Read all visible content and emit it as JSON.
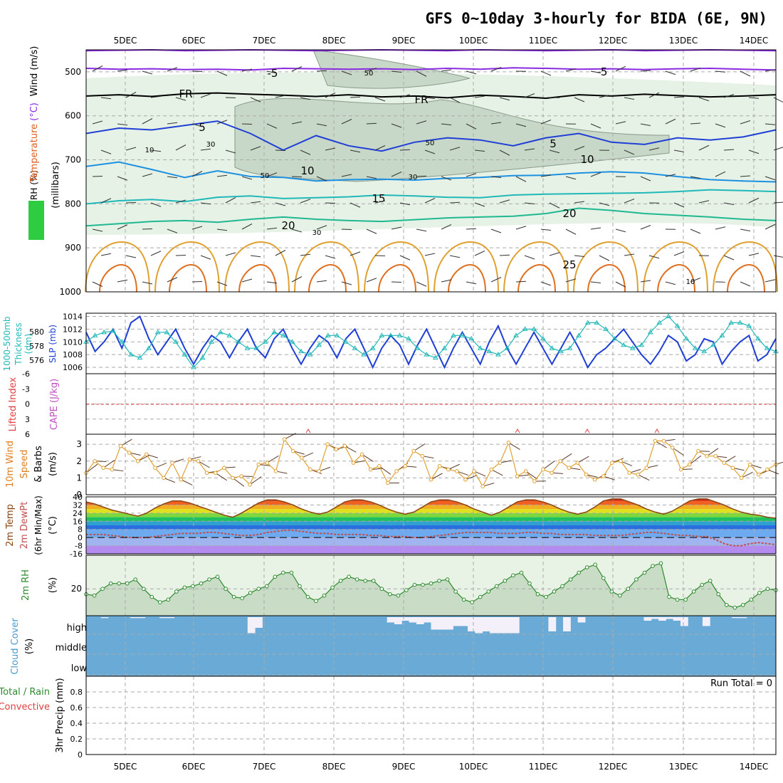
{
  "title": "GFS 0~10day 3-hourly for BIDA (6E, 9N)",
  "run_total": "Run Total = 0",
  "dates": [
    "5DEC",
    "6DEC",
    "7DEC",
    "8DEC",
    "9DEC",
    "10DEC",
    "11DEC",
    "12DEC",
    "13DEC",
    "14DEC"
  ],
  "colors": {
    "purple": "#8a2be2",
    "black": "#000000",
    "blue": "#1f3fd6",
    "lightblue": "#1e90e0",
    "teal": "#20b8b8",
    "green": "#20b890",
    "orange": "#e0a030",
    "darkorange": "#e07020",
    "rh_green": "#2e8b2e",
    "cloud": "#6aaad6",
    "cape": "#c050c0",
    "li": "#e04040"
  },
  "chart_data": [
    {
      "type": "line",
      "panel": "upper-air",
      "ylabel_parts": [
        "RH (%)",
        "Temperature",
        "(°C)",
        "Wind (m/s)"
      ],
      "ylabel2": "(millibars)",
      "y_ticks": [
        500,
        600,
        700,
        800,
        900,
        1000
      ],
      "ylim": [
        1000,
        450
      ],
      "contour_labels": [
        "-5",
        "-5",
        "5",
        "5",
        "10",
        "10",
        "15",
        "20",
        "20",
        "25",
        "FR",
        "FR",
        "10",
        "30",
        "50",
        "50",
        "50",
        "30",
        "30",
        "10"
      ],
      "isotherms": [
        {
          "name": "-5",
          "color": "purple",
          "level": [
            492,
            494,
            493,
            495,
            494,
            496,
            492,
            493,
            494,
            493,
            495,
            492,
            494,
            491,
            492,
            494,
            493,
            495,
            493,
            492,
            494,
            496
          ]
        },
        {
          "name": "-5b",
          "color": "purple",
          "level": [
            452,
            451,
            450,
            452,
            451,
            450,
            451,
            452,
            451,
            450,
            451,
            452,
            450,
            451,
            452,
            451,
            450,
            452,
            451,
            450,
            451,
            452
          ]
        },
        {
          "name": "FR",
          "color": "black",
          "level": [
            555,
            552,
            556,
            550,
            548,
            551,
            553,
            556,
            552,
            557,
            555,
            559,
            553,
            556,
            560,
            552,
            555,
            551,
            554,
            557,
            555,
            552
          ]
        },
        {
          "name": "5",
          "color": "blue",
          "level": [
            640,
            628,
            632,
            622,
            612,
            640,
            678,
            645,
            668,
            680,
            660,
            650,
            655,
            668,
            650,
            640,
            660,
            665,
            650,
            655,
            648,
            632
          ]
        },
        {
          "name": "10",
          "color": "lightblue",
          "level": [
            715,
            705,
            722,
            740,
            725,
            738,
            740,
            748,
            745,
            744,
            746,
            742,
            740,
            736,
            735,
            730,
            727,
            730,
            738,
            745,
            748,
            750
          ]
        },
        {
          "name": "15",
          "color": "teal",
          "level": [
            800,
            793,
            790,
            795,
            785,
            782,
            788,
            786,
            784,
            780,
            782,
            785,
            786,
            780,
            778,
            777,
            776,
            775,
            772,
            768,
            770,
            772
          ]
        },
        {
          "name": "20",
          "color": "green",
          "level": [
            850,
            845,
            840,
            838,
            842,
            835,
            830,
            835,
            838,
            840,
            836,
            832,
            830,
            828,
            822,
            810,
            815,
            822,
            826,
            830,
            835,
            838
          ]
        }
      ]
    },
    {
      "type": "line",
      "panel": "thickness-slp",
      "ylabel_left": [
        "1000-500mb",
        "Thickness",
        "(dm)"
      ],
      "ylabel_right": [
        "SLP",
        "(mb)"
      ],
      "y_ticks_left": [
        576,
        578,
        580
      ],
      "y_ticks_right": [
        1006,
        1008,
        1010,
        1012,
        1014
      ],
      "ylim_right": [
        1005,
        1014.5
      ],
      "series": [
        {
          "name": "SLP (mb)",
          "color": "blue",
          "values": [
            1011.5,
            1008.5,
            1010,
            1012,
            1009,
            1013,
            1014,
            1010.5,
            1008,
            1010,
            1012,
            1009,
            1006.5,
            1009,
            1011,
            1010,
            1007.5,
            1010,
            1012,
            1009,
            1007.5,
            1010.5,
            1012,
            1009,
            1006.5,
            1009,
            1011,
            1010,
            1007.5,
            1010.5,
            1012,
            1009,
            1006,
            1009,
            1011,
            1009.5,
            1006.5,
            1009.5,
            1012,
            1009,
            1006,
            1009,
            1011.5,
            1009,
            1006.5,
            1010,
            1012.5,
            1009,
            1006.5,
            1009,
            1011.5,
            1009,
            1006.5,
            1009,
            1011.5,
            1009,
            1006,
            1008,
            1009,
            1010.5,
            1012,
            1010,
            1008,
            1006.5,
            1008.5,
            1011,
            1010,
            1007,
            1008,
            1010.5,
            1010,
            1006.5,
            1008.5,
            1010,
            1011,
            1007,
            1008,
            1010.5
          ]
        },
        {
          "name": "Thickness (dm)",
          "color": "teal",
          "values": [
            1010,
            1011,
            1011.5,
            1011.7,
            1010,
            1008,
            1007.5,
            1009,
            1011.5,
            1011.5,
            1010,
            1008,
            1006,
            1007.5,
            1010,
            1011.5,
            1011,
            1010,
            1009,
            1009,
            1010,
            1011.5,
            1011,
            1010,
            1008.5,
            1008,
            1009.5,
            1011,
            1011,
            1010,
            1009,
            1008,
            1009,
            1011,
            1011,
            1011,
            1010.5,
            1009,
            1008,
            1007.5,
            1009,
            1011,
            1011,
            1010.5,
            1009,
            1008.5,
            1008,
            1009,
            1011,
            1012,
            1012,
            1010.5,
            1009,
            1008.5,
            1009,
            1011,
            1013,
            1013,
            1012,
            1010.5,
            1009.5,
            1009,
            1009.5,
            1011.5,
            1013,
            1014,
            1012.5,
            1010.5,
            1009,
            1008.5,
            1009.5,
            1011,
            1013,
            1013,
            1012.5,
            1010.5,
            1009,
            1008.5
          ]
        }
      ]
    },
    {
      "type": "line",
      "panel": "cape-li",
      "ylabel_parts": [
        "Lifted Index",
        "CAPE (J/kg)"
      ],
      "y_ticks": [
        "-6",
        "-3",
        "0",
        "3",
        "6"
      ]
    },
    {
      "type": "line",
      "panel": "wind10m",
      "ylabel_parts": [
        "10m Wind",
        "Speed",
        "& Barbs",
        "(m/s)"
      ],
      "y_ticks": [
        0,
        1,
        2,
        3
      ],
      "ylim": [
        0,
        3.6
      ],
      "series": [
        {
          "name": "10m Wind Speed",
          "color": "orange",
          "values": [
            1.3,
            2.0,
            1.6,
            1.5,
            2.9,
            2.5,
            2.0,
            2.4,
            1.6,
            1.0,
            1.9,
            0.9,
            2.1,
            2.0,
            1.3,
            1.3,
            1.6,
            1.0,
            1.1,
            0.6,
            1.8,
            1.9,
            1.4,
            3.3,
            2.6,
            2.2,
            1.5,
            1.4,
            3.0,
            2.7,
            2.9,
            1.9,
            2.4,
            1.5,
            1.7,
            0.7,
            1.4,
            1.7,
            2.6,
            2.3,
            0.9,
            1.7,
            1.5,
            1.4,
            0.9,
            1.4,
            0.5,
            1.5,
            1.9,
            3.1,
            1.1,
            1.4,
            0.8,
            1.5,
            1.3,
            2.0,
            1.6,
            1.9,
            1.2,
            0.9,
            1.1,
            1.9,
            2.0,
            1.3,
            1.2,
            1.6,
            3.2,
            3.2,
            2.8,
            1.5,
            1.8,
            2.6,
            2.3,
            2.3,
            1.9,
            1.6,
            1.0,
            1.8,
            1.2,
            1.5,
            1.8
          ]
        }
      ]
    },
    {
      "type": "area",
      "panel": "temperature",
      "ylabel_parts": [
        "2m Temp",
        "2m DewPt",
        "(6hr Min/Max)",
        "(°C)"
      ],
      "y_ticks": [
        "40",
        "32",
        "24",
        "16",
        "8",
        "0",
        "-8",
        "-16"
      ],
      "ylim": [
        -16,
        40
      ],
      "series": [
        {
          "name": "2m Temp",
          "color": "#8b4513",
          "values": [
            35,
            33,
            30,
            27,
            25,
            23,
            21,
            24,
            29,
            33,
            36,
            36,
            34,
            31,
            28,
            25,
            22,
            20,
            24,
            29,
            34,
            37,
            37,
            35,
            32,
            28,
            25,
            23,
            25,
            30,
            35,
            37,
            37,
            35,
            32,
            28,
            25,
            23,
            25,
            30,
            35,
            37,
            37,
            35,
            32,
            28,
            25,
            22,
            25,
            30,
            35,
            37,
            37,
            35,
            32,
            28,
            25,
            23,
            25,
            30,
            36,
            38,
            38,
            35,
            32,
            28,
            25,
            23,
            26,
            31,
            36,
            38,
            38,
            35,
            32,
            28,
            25,
            23,
            22,
            20,
            19
          ]
        },
        {
          "name": "2m DewPt",
          "color": "#c05050",
          "values": [
            3,
            3,
            3,
            2,
            1,
            0,
            0,
            0,
            1,
            2,
            3,
            4,
            4,
            4,
            5,
            5,
            4,
            3,
            2,
            2,
            3,
            5,
            6,
            7,
            7,
            6,
            5,
            4,
            4,
            3,
            3,
            3,
            3,
            2,
            2,
            1,
            1,
            1,
            0,
            0,
            1,
            2,
            3,
            4,
            5,
            5,
            5,
            5,
            4,
            4,
            4,
            5,
            5,
            4,
            4,
            3,
            3,
            3,
            3,
            2,
            2,
            2,
            2,
            3,
            4,
            5,
            5,
            4,
            3,
            2,
            2,
            1,
            1,
            -2,
            -6,
            -8,
            -8,
            -6,
            -5,
            -6,
            -7
          ]
        }
      ]
    },
    {
      "type": "area",
      "panel": "rh2m",
      "ylabel_parts": [
        "2m RH",
        "(%)"
      ],
      "y_ticks": [
        20
      ],
      "ylim": [
        0,
        45
      ],
      "series": [
        {
          "name": "2m RH",
          "color": "rh_green",
          "values": [
            16,
            15,
            20,
            24,
            24,
            24,
            27,
            20,
            14,
            10,
            12,
            18,
            21,
            22,
            24,
            27,
            29,
            20,
            14,
            13,
            17,
            20,
            22,
            29,
            32,
            32,
            22,
            14,
            11,
            15,
            21,
            26,
            29,
            27,
            26,
            26,
            20,
            16,
            15,
            19,
            23,
            23,
            24,
            26,
            27,
            18,
            12,
            10,
            14,
            18,
            22,
            26,
            30,
            32,
            24,
            16,
            14,
            18,
            22,
            27,
            32,
            36,
            38,
            28,
            18,
            15,
            20,
            27,
            32,
            37,
            39,
            14,
            12,
            12,
            18,
            23,
            26,
            16,
            8,
            6,
            8,
            12,
            17,
            20,
            19
          ]
        }
      ]
    },
    {
      "type": "bar",
      "panel": "cloud",
      "ylabel_parts": [
        "Cloud Cover",
        "(%)"
      ],
      "y_ticks": [
        "high",
        "middle",
        "low"
      ],
      "series": [
        {
          "name": "high cloud gap",
          "values": [
            0,
            0,
            0.05,
            0,
            0,
            0,
            0.05,
            0.05,
            0,
            0,
            0.05,
            0.05,
            0,
            0,
            0,
            0,
            0,
            0,
            0,
            0,
            0,
            0,
            0.9,
            0.6,
            0,
            0,
            0,
            0,
            0,
            0,
            0,
            0,
            0,
            0,
            0,
            0,
            0,
            0,
            0,
            0,
            0,
            0.3,
            0.4,
            0.2,
            0.3,
            0.4,
            0.3,
            0.7,
            0.7,
            0.7,
            0.5,
            0.5,
            0.8,
            0.9,
            0.8,
            0.9,
            0.9,
            0.9,
            0.9,
            0,
            0,
            0,
            0,
            0.8,
            0,
            0.8,
            0,
            0.3,
            0,
            0,
            0,
            0,
            0,
            0,
            0,
            0,
            0.2,
            0.1,
            0.2,
            0.1,
            0.2,
            0.5,
            0,
            0,
            0.5,
            0,
            0,
            0,
            0.05,
            0.05,
            0,
            0,
            0,
            0
          ]
        }
      ]
    },
    {
      "type": "bar",
      "panel": "precip",
      "ylabel_parts": [
        "3hr Precip (mm)",
        "Total / Rain",
        "Convective"
      ],
      "y_ticks": [
        "0",
        "0.2",
        "0.4",
        "0.6",
        "0.8"
      ],
      "ylim": [
        0,
        1.0
      ]
    }
  ]
}
